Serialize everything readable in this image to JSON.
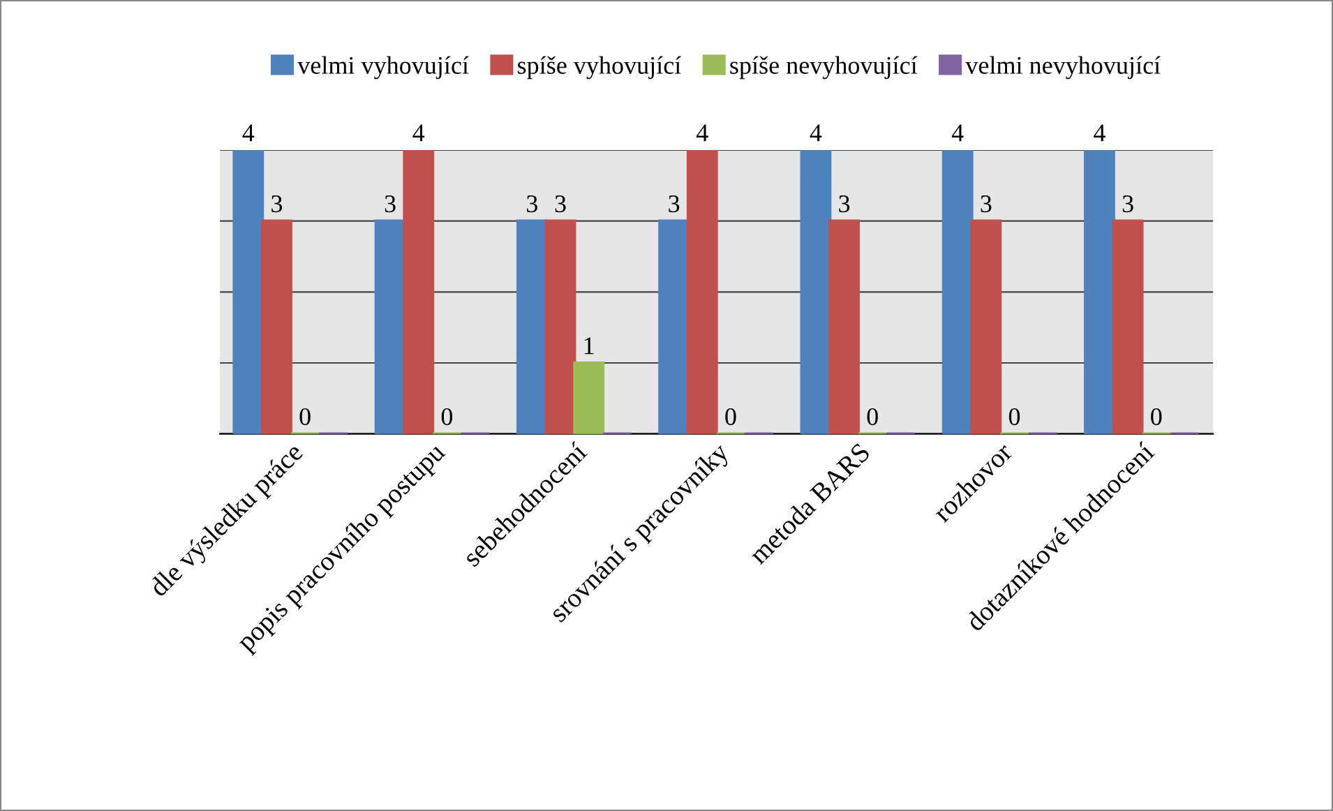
{
  "chart_data": {
    "type": "bar",
    "categories": [
      "dle výsledku práce",
      "popis pracovního postupu",
      "sebehodnocení",
      "srovnání s pracovníky",
      "metoda BARS",
      "rozhovor",
      "dotazníkové hodnocení"
    ],
    "series": [
      {
        "name": "velmi vyhovující",
        "color": "#4f81bd",
        "values": [
          4,
          3,
          3,
          3,
          4,
          4,
          4
        ],
        "value_labels": [
          "4",
          "3",
          "3",
          "3",
          "4",
          "4",
          "4"
        ]
      },
      {
        "name": "spíše vyhovující",
        "color": "#c0504d",
        "values": [
          3,
          4,
          3,
          4,
          3,
          3,
          3
        ],
        "value_labels": [
          "3",
          "4",
          "3",
          "4",
          "3",
          "3",
          "3"
        ]
      },
      {
        "name": "spíše nevyhovující",
        "color": "#9bbb59",
        "values": [
          0,
          0,
          1,
          0,
          0,
          0,
          0
        ],
        "value_labels": [
          "0",
          "0",
          "1",
          "0",
          "0",
          "0",
          "0"
        ]
      },
      {
        "name": "velmi nevyhovující",
        "color": "#8064a2",
        "values": [
          0,
          0,
          0,
          0,
          0,
          0,
          0
        ],
        "value_labels": [
          null,
          null,
          null,
          null,
          null,
          null,
          null
        ]
      }
    ],
    "ylim": [
      0,
      4
    ],
    "yticks": [
      {
        "value": 0,
        "label": null
      },
      {
        "value": 1,
        "label": null
      },
      {
        "value": 2,
        "label": null
      },
      {
        "value": 3,
        "label": null
      },
      {
        "value": 4,
        "label": null
      }
    ],
    "grid": "y",
    "legend": "top"
  }
}
